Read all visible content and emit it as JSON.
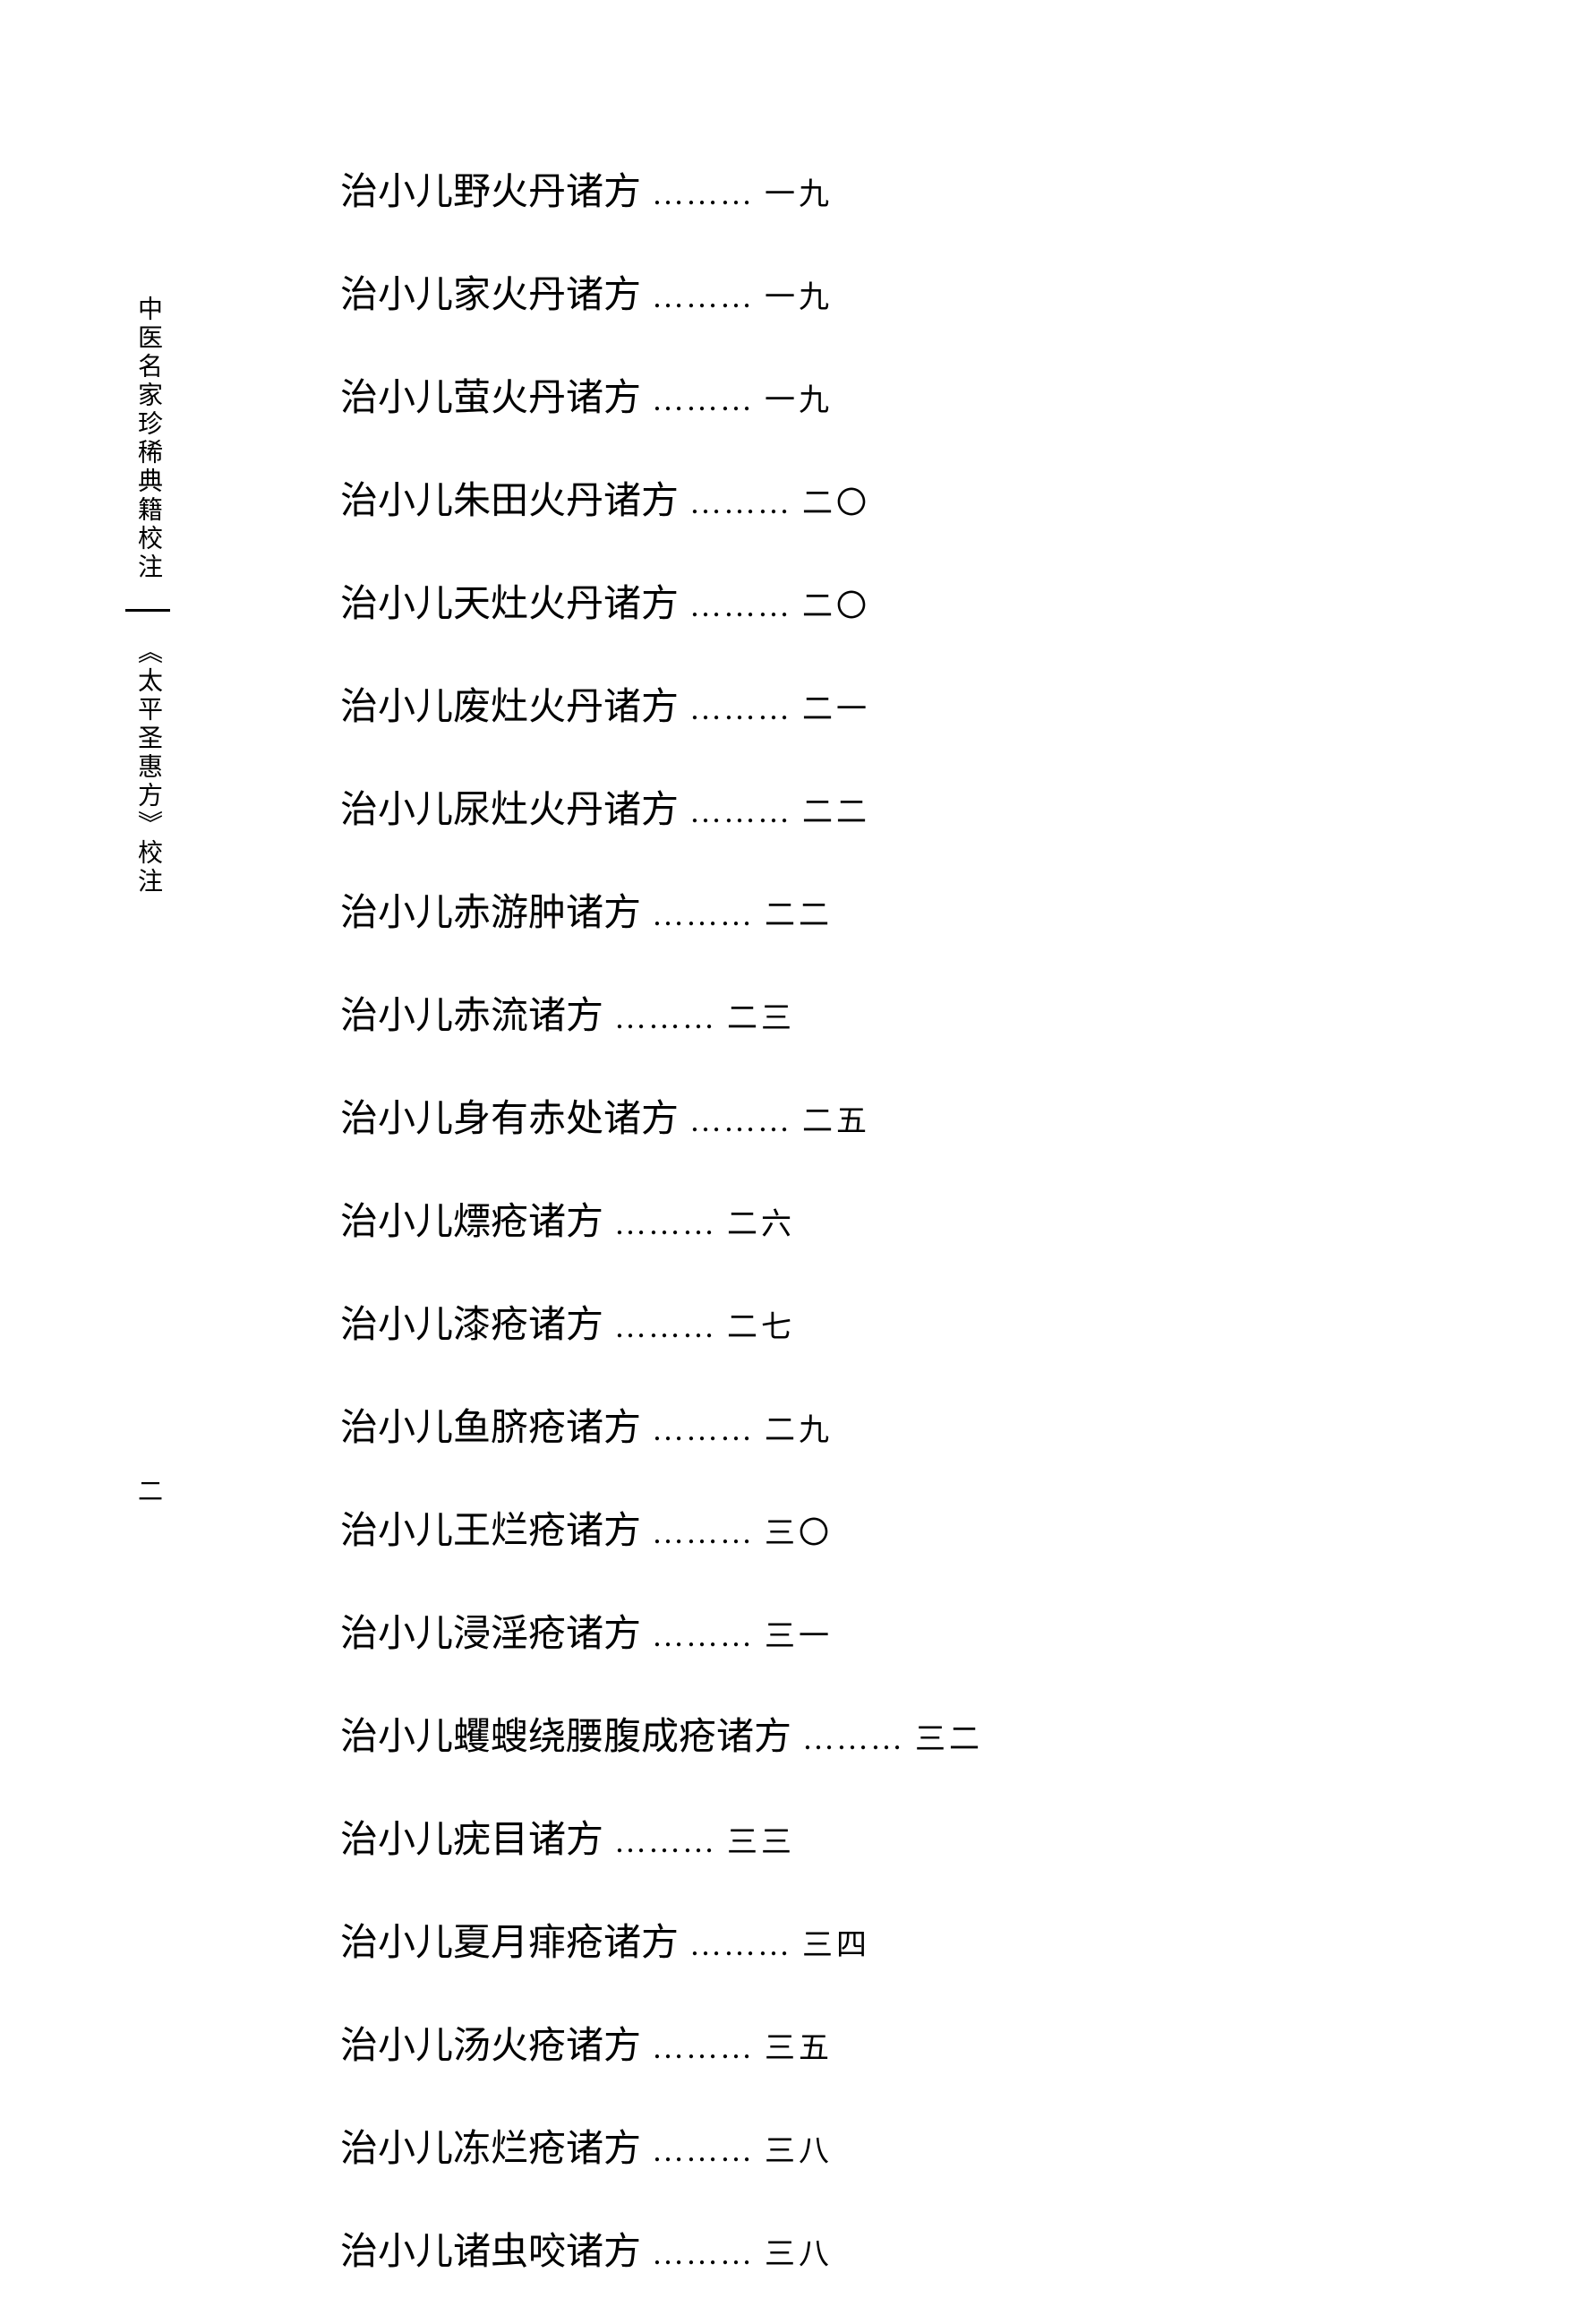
{
  "sidebar": {
    "series_title": "中医名家珍稀典籍校注",
    "book_title": "《太平圣惠方》校注",
    "page_number": "二"
  },
  "toc": {
    "dots": "………",
    "title_fontsize": 42,
    "page_fontsize": 34,
    "text_color": "#000000",
    "background_color": "#ffffff",
    "line_spacing": 54,
    "entries": [
      {
        "title": "治小儿野火丹诸方",
        "page": "一九"
      },
      {
        "title": "治小儿家火丹诸方",
        "page": "一九"
      },
      {
        "title": "治小儿萤火丹诸方",
        "page": "一九"
      },
      {
        "title": "治小儿朱田火丹诸方",
        "page": "二〇"
      },
      {
        "title": "治小儿天灶火丹诸方",
        "page": "二〇"
      },
      {
        "title": "治小儿废灶火丹诸方",
        "page": "二一"
      },
      {
        "title": "治小儿尿灶火丹诸方",
        "page": "二二"
      },
      {
        "title": "治小儿赤游肿诸方",
        "page": "二二"
      },
      {
        "title": "治小儿赤流诸方",
        "page": "二三"
      },
      {
        "title": "治小儿身有赤处诸方",
        "page": "二五"
      },
      {
        "title": "治小儿熛疮诸方",
        "page": "二六"
      },
      {
        "title": "治小儿漆疮诸方",
        "page": "二七"
      },
      {
        "title": "治小儿鱼脐疮诸方",
        "page": "二九"
      },
      {
        "title": "治小儿王烂疮诸方",
        "page": "三〇"
      },
      {
        "title": "治小儿浸淫疮诸方",
        "page": "三一"
      },
      {
        "title": "治小儿蠼螋绕腰腹成疮诸方",
        "page": "三二"
      },
      {
        "title": "治小儿疣目诸方",
        "page": "三三"
      },
      {
        "title": "治小儿夏月痱疮诸方",
        "page": "三四"
      },
      {
        "title": "治小儿汤火疮诸方",
        "page": "三五"
      },
      {
        "title": "治小儿冻烂疮诸方",
        "page": "三八"
      },
      {
        "title": "治小儿诸虫咬诸方",
        "page": "三八"
      }
    ]
  }
}
